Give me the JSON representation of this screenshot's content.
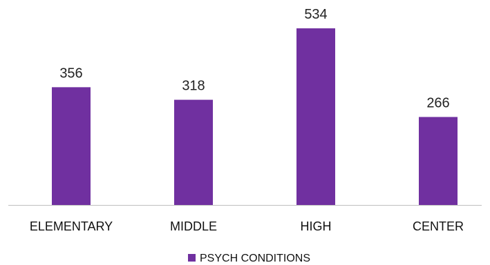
{
  "chart_data": {
    "type": "bar",
    "categories": [
      "ELEMENTARY",
      "MIDDLE",
      "HIGH",
      "CENTER"
    ],
    "series": [
      {
        "name": "PSYCH CONDITIONS",
        "values": [
          356,
          318,
          534,
          266
        ],
        "color": "#7030A0"
      }
    ],
    "data_labels": [
      "356",
      "318",
      "534",
      "266"
    ],
    "legend": {
      "position": "bottom"
    },
    "grid": false,
    "ylim": [
      0,
      600
    ]
  }
}
